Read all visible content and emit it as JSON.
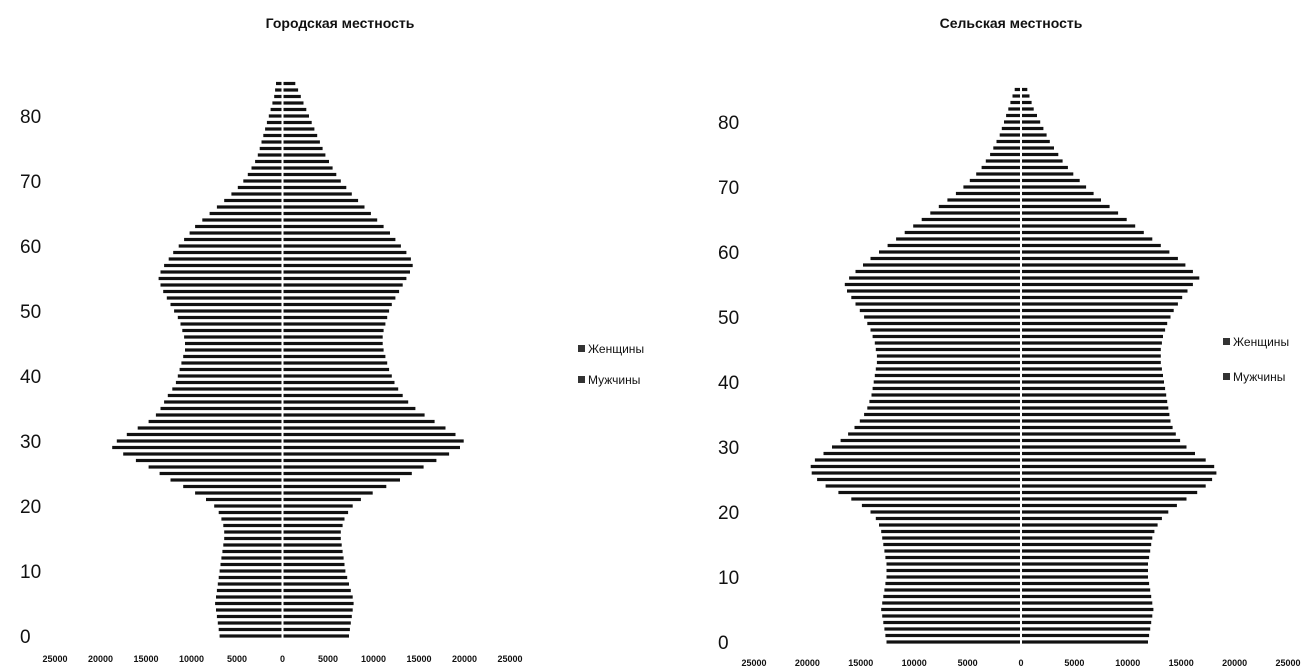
{
  "chart_data": [
    {
      "type": "bar",
      "orientation": "horizontal",
      "title": "Городская местность",
      "yticks": [
        "0",
        "10",
        "20",
        "30",
        "40",
        "50",
        "60",
        "70",
        "80"
      ],
      "xticks": [
        "25000",
        "20000",
        "15000",
        "10000",
        "5000",
        "0",
        "5000",
        "10000",
        "15000",
        "20000",
        "25000"
      ],
      "xlim": [
        -25000,
        25000
      ],
      "ylim": [
        0,
        85
      ],
      "legend_position": "right",
      "series": [
        {
          "name": "Женщины",
          "side": "left",
          "color": "#111111",
          "values": [
            6800,
            6900,
            7000,
            7100,
            7200,
            7300,
            7200,
            7100,
            7000,
            6900,
            6800,
            6700,
            6600,
            6500,
            6400,
            6300,
            6300,
            6400,
            6600,
            6900,
            7400,
            8300,
            9500,
            10800,
            12200,
            13400,
            14600,
            16000,
            17400,
            18600,
            18100,
            17000,
            15800,
            14600,
            13800,
            13300,
            12900,
            12500,
            12000,
            11600,
            11400,
            11200,
            11000,
            10800,
            10600,
            10600,
            10700,
            10900,
            11100,
            11400,
            11800,
            12200,
            12600,
            13000,
            13300,
            13500,
            13300,
            12900,
            12400,
            11900,
            11300,
            10700,
            10100,
            9500,
            8700,
            7900,
            7100,
            6300,
            5500,
            4800,
            4200,
            3700,
            3300,
            2900,
            2600,
            2400,
            2200,
            2000,
            1800,
            1600,
            1400,
            1200,
            1000,
            800,
            700,
            600
          ]
        },
        {
          "name": "Мужчины",
          "side": "right",
          "color": "#111111",
          "values": [
            7200,
            7300,
            7400,
            7500,
            7600,
            7700,
            7600,
            7400,
            7200,
            7000,
            6800,
            6700,
            6600,
            6500,
            6400,
            6300,
            6300,
            6500,
            6700,
            7100,
            7600,
            8500,
            9800,
            11300,
            12800,
            14100,
            15400,
            16800,
            18200,
            19400,
            19800,
            18900,
            17800,
            16600,
            15500,
            14500,
            13700,
            13100,
            12600,
            12200,
            11900,
            11600,
            11400,
            11200,
            11000,
            10900,
            10900,
            11000,
            11200,
            11400,
            11600,
            11900,
            12300,
            12700,
            13100,
            13500,
            13900,
            14200,
            14000,
            13500,
            12900,
            12300,
            11700,
            11000,
            10300,
            9600,
            8900,
            8200,
            7500,
            6900,
            6300,
            5800,
            5400,
            5000,
            4600,
            4300,
            4000,
            3700,
            3400,
            3100,
            2800,
            2500,
            2200,
            1900,
            1600,
            1300
          ]
        }
      ]
    },
    {
      "type": "bar",
      "orientation": "horizontal",
      "title": "Сельская местность",
      "yticks": [
        "0",
        "10",
        "20",
        "30",
        "40",
        "50",
        "60",
        "70",
        "80"
      ],
      "xticks": [
        "25000",
        "20000",
        "15000",
        "10000",
        "5000",
        "0",
        "5000",
        "10000",
        "15000",
        "20000",
        "25000"
      ],
      "xlim": [
        -25000,
        25000
      ],
      "ylim": [
        0,
        85
      ],
      "legend_position": "right",
      "series": [
        {
          "name": "Женщины",
          "side": "left",
          "color": "#111111",
          "values": [
            12500,
            12600,
            12700,
            12800,
            12900,
            13000,
            12900,
            12800,
            12700,
            12600,
            12500,
            12500,
            12500,
            12600,
            12700,
            12800,
            12900,
            13000,
            13200,
            13500,
            14000,
            14800,
            15800,
            17000,
            18200,
            19000,
            19500,
            19600,
            19200,
            18400,
            17600,
            16800,
            16100,
            15500,
            15000,
            14600,
            14300,
            14100,
            13900,
            13800,
            13700,
            13600,
            13500,
            13400,
            13400,
            13500,
            13600,
            13800,
            14000,
            14300,
            14600,
            15000,
            15400,
            15800,
            16200,
            16400,
            16000,
            15400,
            14700,
            14000,
            13200,
            12400,
            11600,
            10800,
            10000,
            9200,
            8400,
            7600,
            6800,
            6000,
            5300,
            4700,
            4100,
            3600,
            3200,
            2800,
            2500,
            2200,
            1900,
            1700,
            1500,
            1300,
            1100,
            900,
            700,
            500
          ]
        },
        {
          "name": "Мужчины",
          "side": "right",
          "color": "#111111",
          "values": [
            11800,
            11900,
            12000,
            12100,
            12200,
            12300,
            12200,
            12100,
            12000,
            11900,
            11800,
            11800,
            11800,
            11900,
            12000,
            12100,
            12200,
            12400,
            12700,
            13100,
            13700,
            14500,
            15400,
            16400,
            17200,
            17800,
            18200,
            18000,
            17200,
            16200,
            15400,
            14800,
            14400,
            14100,
            13900,
            13800,
            13700,
            13600,
            13500,
            13400,
            13300,
            13200,
            13100,
            13000,
            13000,
            13000,
            13100,
            13200,
            13400,
            13600,
            13900,
            14200,
            14600,
            15000,
            15500,
            16000,
            16600,
            16000,
            15300,
            14600,
            13800,
            13000,
            12200,
            11400,
            10600,
            9800,
            9000,
            8200,
            7400,
            6700,
            6000,
            5400,
            4800,
            4300,
            3800,
            3400,
            3000,
            2600,
            2300,
            2000,
            1700,
            1400,
            1100,
            900,
            700,
            500
          ]
        }
      ]
    }
  ]
}
